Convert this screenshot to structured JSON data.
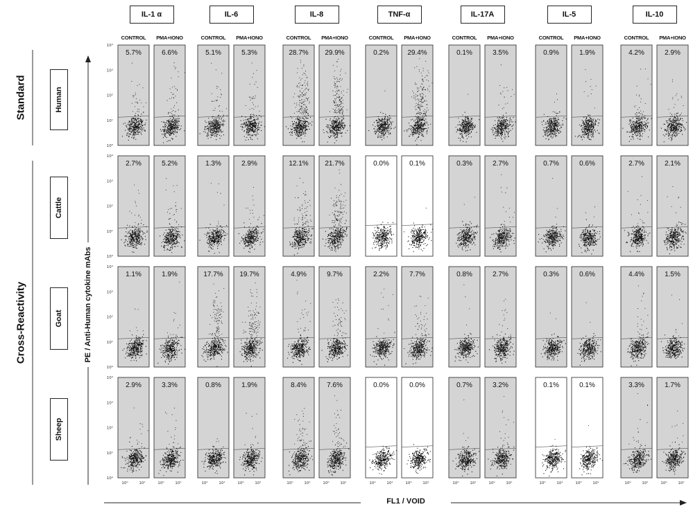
{
  "chart_data": {
    "type": "scatter",
    "title": "",
    "xlabel": "FL1 / VOID",
    "ylabel": "PE / Anti-Human cytokine mAbs",
    "cytokines": [
      "IL-1 α",
      "IL-6",
      "IL-8",
      "TNF-α",
      "IL-17A",
      "IL-5",
      "IL-10"
    ],
    "conditions": [
      "CONTROL",
      "PMA+IONO"
    ],
    "groups": [
      {
        "label": "Standard",
        "species": [
          "Human"
        ]
      },
      {
        "label": "Cross-Reactivity",
        "species": [
          "Cattle",
          "Goat",
          "Sheep"
        ]
      }
    ],
    "species": [
      "Human",
      "Cattle",
      "Goat",
      "Sheep"
    ],
    "percentages": {
      "Human": [
        [
          "5.7%",
          "6.6%"
        ],
        [
          "5.1%",
          "5.3%"
        ],
        [
          "28.7%",
          "29.9%"
        ],
        [
          "0.2%",
          "29.4%"
        ],
        [
          "0.1%",
          "3.5%"
        ],
        [
          "0.9%",
          "1.9%"
        ],
        [
          "4.2%",
          "2.9%"
        ]
      ],
      "Cattle": [
        [
          "2.7%",
          "5.2%"
        ],
        [
          "1.3%",
          "2.9%"
        ],
        [
          "12.1%",
          "21.7%"
        ],
        [
          "0.0%",
          "0.1%"
        ],
        [
          "0.3%",
          "2.7%"
        ],
        [
          "0.7%",
          "0.6%"
        ],
        [
          "2.7%",
          "2.1%"
        ]
      ],
      "Goat": [
        [
          "1.1%",
          "1.9%"
        ],
        [
          "17.7%",
          "19.7%"
        ],
        [
          "4.9%",
          "9.7%"
        ],
        [
          "2.2%",
          "7.7%"
        ],
        [
          "0.8%",
          "2.7%"
        ],
        [
          "0.3%",
          "0.6%"
        ],
        [
          "4.4%",
          "1.5%"
        ]
      ],
      "Sheep": [
        [
          "2.9%",
          "3.3%"
        ],
        [
          "0.8%",
          "1.9%"
        ],
        [
          "8.4%",
          "7.6%"
        ],
        [
          "0.0%",
          "0.0%"
        ],
        [
          "0.7%",
          "3.2%"
        ],
        [
          "0.1%",
          "0.1%"
        ],
        [
          "3.3%",
          "1.7%"
        ]
      ]
    },
    "white_background_panels": [
      [
        "Cattle",
        "TNF-α"
      ],
      [
        "Sheep",
        "TNF-α"
      ],
      [
        "Sheep",
        "IL-5"
      ]
    ],
    "y_axis": {
      "scale": "log",
      "range": [
        1,
        10000
      ],
      "tick_labels": [
        "10⁰",
        "10¹",
        "10²",
        "10³",
        "10⁴"
      ]
    },
    "x_axis": {
      "scale": "log",
      "tick_labels": [
        "10⁰",
        "10¹"
      ]
    },
    "gate_line": true,
    "grid": false
  },
  "colors": {
    "panel_fill": "#d4d4d4",
    "panel_fill_white": "#ffffff",
    "dots": "#111111",
    "gate": "#555555",
    "border": "#222222"
  }
}
